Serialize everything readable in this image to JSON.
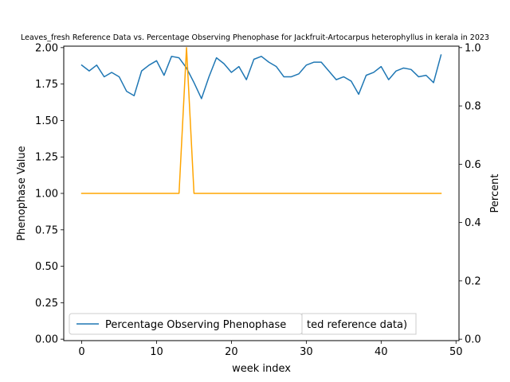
{
  "chart_data": {
    "type": "line",
    "title": "Leaves_fresh Reference Data vs. Percentage Observing Phenophase for Jackfruit-Artocarpus heterophyllus in kerala in 2023",
    "xlabel": "week index",
    "ylabel_left": "Phenophase Value",
    "ylabel_right": "Percent",
    "xlim": [
      -2.4,
      50.4
    ],
    "ylim_left": [
      -0.01,
      2.01
    ],
    "ylim_right": [
      -0.005,
      1.005
    ],
    "x_ticks": [
      0,
      10,
      20,
      30,
      40,
      50
    ],
    "x_tick_labels": [
      "0",
      "10",
      "20",
      "30",
      "40",
      "50"
    ],
    "y_left_ticks": [
      0.0,
      0.25,
      0.5,
      0.75,
      1.0,
      1.25,
      1.5,
      1.75,
      2.0
    ],
    "y_left_tick_labels": [
      "0.00",
      "0.25",
      "0.50",
      "0.75",
      "1.00",
      "1.25",
      "1.50",
      "1.75",
      "2.00"
    ],
    "y_right_ticks": [
      0.0,
      0.2,
      0.4,
      0.6,
      0.8,
      1.0
    ],
    "y_right_tick_labels": [
      "0.0",
      "0.2",
      "0.4",
      "0.6",
      "0.8",
      "1.0"
    ],
    "grid": false,
    "legend_position": "lower-left",
    "series": [
      {
        "name": "Percentage Observing Phenophase",
        "axis": "left",
        "color": "#1f77b4",
        "x": [
          0,
          1,
          2,
          3,
          4,
          5,
          6,
          7,
          8,
          9,
          10,
          11,
          12,
          13,
          14,
          15,
          16,
          17,
          18,
          19,
          20,
          21,
          22,
          23,
          24,
          25,
          26,
          27,
          28,
          29,
          30,
          31,
          32,
          33,
          34,
          35,
          36,
          37,
          38,
          39,
          40,
          41,
          42,
          43,
          44,
          45,
          46,
          47,
          48
        ],
        "values": [
          1.88,
          1.84,
          1.88,
          1.8,
          1.83,
          1.8,
          1.7,
          1.67,
          1.84,
          1.88,
          1.91,
          1.81,
          1.94,
          1.93,
          1.86,
          1.76,
          1.65,
          1.8,
          1.93,
          1.89,
          1.83,
          1.87,
          1.78,
          1.92,
          1.94,
          1.9,
          1.87,
          1.8,
          1.8,
          1.82,
          1.88,
          1.9,
          1.9,
          1.84,
          1.78,
          1.8,
          1.77,
          1.68,
          1.81,
          1.83,
          1.87,
          1.78,
          1.84,
          1.86,
          1.85,
          1.8,
          1.81,
          1.76,
          1.95
        ]
      },
      {
        "name": "",
        "axis": "left",
        "color": "#ffa500",
        "x": [
          0,
          13,
          14,
          15,
          48
        ],
        "values": [
          1.0,
          1.0,
          2.0,
          1.0,
          1.0
        ]
      }
    ],
    "legend_entries": [
      {
        "label": "Percentage Observing Phenophase",
        "color": "#1f77b4"
      }
    ],
    "legend_hidden_fragment": "ted reference data)"
  }
}
